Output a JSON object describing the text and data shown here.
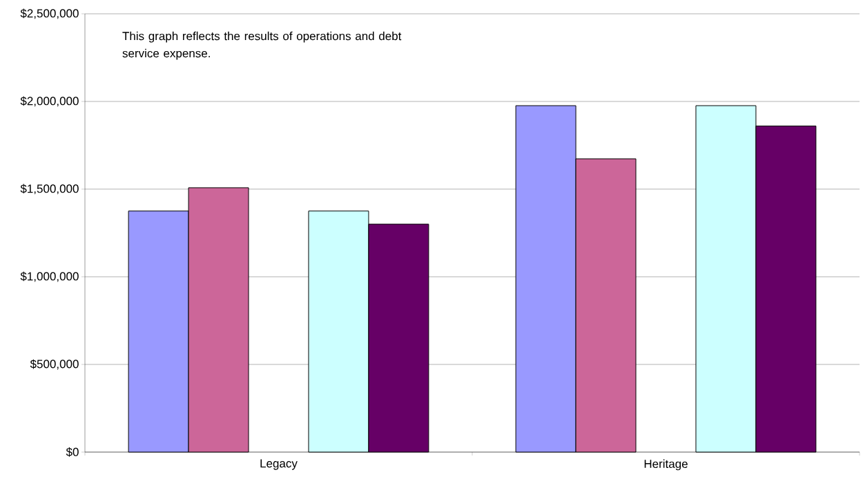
{
  "chart_data": {
    "type": "bar",
    "categories": [
      "Legacy",
      "Heritage"
    ],
    "series": [
      {
        "color": "#9999ff",
        "values": [
          1375000,
          1976000
        ]
      },
      {
        "color": "#cc6699",
        "values": [
          1508000,
          1673000
        ]
      },
      {
        "color": "#ccffff",
        "values": [
          1375000,
          1976000
        ]
      },
      {
        "color": "#660066",
        "values": [
          1300000,
          1860000
        ]
      }
    ],
    "ylim": [
      0,
      2500000
    ],
    "yticks": [
      {
        "value": 0,
        "label": "$0"
      },
      {
        "value": 500000,
        "label": "$500,000"
      },
      {
        "value": 1000000,
        "label": "$1,000,000"
      },
      {
        "value": 1500000,
        "label": "$1,500,000"
      },
      {
        "value": 2000000,
        "label": "$2,000,000"
      },
      {
        "value": 2500000,
        "label": "$2,500,000"
      }
    ],
    "grid": "y",
    "annotations": [
      "This graph reflects the results of operations and debt service expense."
    ]
  }
}
